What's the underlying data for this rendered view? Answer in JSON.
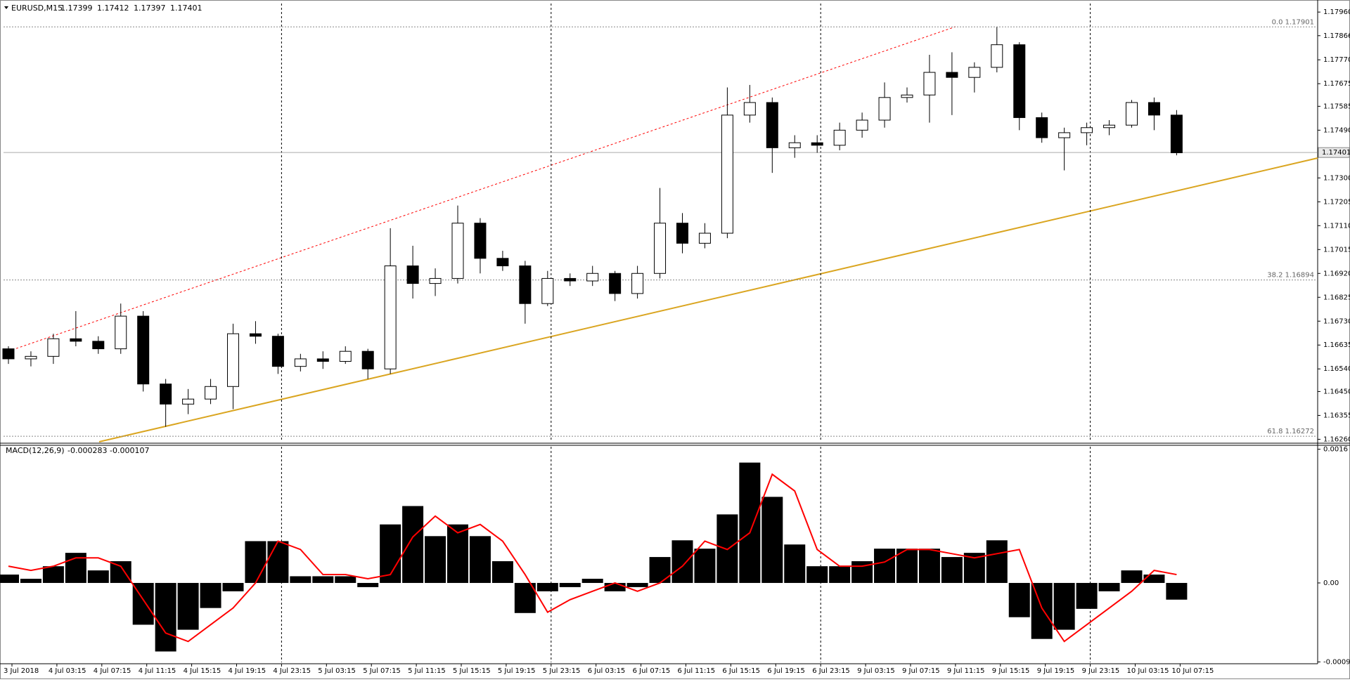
{
  "chart_data": [
    {
      "type": "candlestick",
      "symbol": "EURUSD,M15",
      "ohlc": [
        1.17399,
        1.17412,
        1.17397,
        1.17401
      ],
      "categories": [
        "3 Jul 2018",
        null,
        "4 Jul 03:15",
        null,
        "4 Jul 07:15",
        null,
        "4 Jul 11:15",
        null,
        "4 Jul 15:15",
        null,
        "4 Jul 19:15",
        null,
        "4 Jul 23:15",
        null,
        "5 Jul 03:15",
        null,
        "5 Jul 07:15",
        null,
        "5 Jul 11:15",
        null,
        "5 Jul 15:15",
        null,
        "5 Jul 19:15",
        null,
        "5 Jul 23:15",
        null,
        "6 Jul 03:15",
        null,
        "6 Jul 07:15",
        null,
        "6 Jul 11:15",
        null,
        "6 Jul 15:15",
        null,
        "6 Jul 19:15",
        null,
        "6 Jul 23:15",
        null,
        "9 Jul 03:15",
        null,
        "9 Jul 07:15",
        null,
        "9 Jul 11:15",
        null,
        "9 Jul 15:15",
        null,
        "9 Jul 19:15",
        null,
        "9 Jul 23:15",
        null,
        "10 Jul 03:15",
        null,
        "10 Jul 07:15"
      ],
      "open": [
        1.1662,
        1.1658,
        1.1659,
        1.1666,
        1.1665,
        1.1662,
        1.1675,
        1.1648,
        1.164,
        1.1642,
        1.1647,
        1.1668,
        1.1667,
        1.1655,
        1.1658,
        1.1657,
        1.1661,
        1.1654,
        1.1695,
        1.1688,
        1.169,
        1.1712,
        1.1698,
        1.1695,
        1.168,
        1.169,
        1.1689,
        1.1692,
        1.1684,
        1.1692,
        1.1712,
        1.1704,
        1.1708,
        1.1755,
        1.176,
        1.1742,
        1.1744,
        1.1743,
        1.1749,
        1.1753,
        1.1762,
        1.1763,
        1.1772,
        1.177,
        1.1774,
        1.1783,
        1.1754,
        1.1746,
        1.1748,
        1.175,
        1.1751,
        1.176,
        1.1755
      ],
      "high": [
        1.1663,
        1.1661,
        1.1668,
        1.1677,
        1.1667,
        1.168,
        1.1677,
        1.165,
        1.1646,
        1.165,
        1.1672,
        1.1673,
        1.1668,
        1.166,
        1.1661,
        1.1663,
        1.1662,
        1.171,
        1.1703,
        1.1694,
        1.1719,
        1.1714,
        1.1701,
        1.1697,
        1.1693,
        1.1692,
        1.1695,
        1.1693,
        1.1695,
        1.1726,
        1.1716,
        1.1712,
        1.1766,
        1.1767,
        1.1762,
        1.1747,
        1.1747,
        1.1752,
        1.1756,
        1.1768,
        1.1766,
        1.1779,
        1.178,
        1.1776,
        1.179,
        1.1784,
        1.1756,
        1.175,
        1.1752,
        1.1753,
        1.1761,
        1.1762,
        1.1757
      ],
      "low": [
        1.1656,
        1.1655,
        1.1656,
        1.1663,
        1.166,
        1.166,
        1.1645,
        1.1631,
        1.1636,
        1.164,
        1.1638,
        1.1664,
        1.1652,
        1.1653,
        1.1654,
        1.1656,
        1.165,
        1.1652,
        1.1682,
        1.1683,
        1.1688,
        1.1692,
        1.1693,
        1.1672,
        1.1679,
        1.1687,
        1.1687,
        1.1681,
        1.1682,
        1.169,
        1.17,
        1.1702,
        1.1706,
        1.1752,
        1.1732,
        1.1738,
        1.174,
        1.1741,
        1.1746,
        1.175,
        1.176,
        1.1752,
        1.1755,
        1.1764,
        1.1772,
        1.1749,
        1.1744,
        1.1733,
        1.1743,
        1.1747,
        1.175,
        1.1749,
        1.1739
      ],
      "close": [
        1.1658,
        1.1659,
        1.1666,
        1.1665,
        1.1662,
        1.1675,
        1.1648,
        1.164,
        1.1642,
        1.1647,
        1.1668,
        1.1667,
        1.1655,
        1.1658,
        1.1657,
        1.1661,
        1.1654,
        1.1695,
        1.1688,
        1.169,
        1.1712,
        1.1698,
        1.1695,
        1.168,
        1.169,
        1.1689,
        1.1692,
        1.1684,
        1.1692,
        1.1712,
        1.1704,
        1.1708,
        1.1755,
        1.176,
        1.1742,
        1.1744,
        1.1743,
        1.1749,
        1.1753,
        1.1762,
        1.1763,
        1.1772,
        1.177,
        1.1774,
        1.1783,
        1.1754,
        1.1746,
        1.1748,
        1.175,
        1.1751,
        1.176,
        1.1755,
        1.174
      ],
      "ylim": [
        1.1625,
        1.17994
      ],
      "yticks": [
        {
          "value": 1.1796,
          "label": "1.17960"
        },
        1.17866,
        {
          "value": 1.1777,
          "label": "1.17770"
        },
        1.17675,
        1.17585,
        {
          "value": 1.1749,
          "label": "1.17490"
        },
        {
          "value": 1.173,
          "label": "1.17300"
        },
        1.17205,
        {
          "value": 1.1711,
          "label": "1.17110"
        },
        1.17015,
        {
          "value": 1.1692,
          "label": "1.16920"
        },
        1.16825,
        {
          "value": 1.1673,
          "label": "1.16730"
        },
        1.16635,
        {
          "value": 1.1654,
          "label": "1.16540"
        },
        {
          "value": 1.1645,
          "label": "1.16450"
        },
        1.16355,
        {
          "value": 1.1626,
          "label": "1.16260"
        }
      ],
      "levels": [
        {
          "label": "0.0 1.17901",
          "value": 1.17901
        },
        {
          "label": "38.2 1.16894",
          "value": 1.16894
        },
        {
          "label": "61.8 1.16272",
          "value": 1.16272
        }
      ],
      "last_price": 1.17401,
      "grid": true
    },
    {
      "type": "macd",
      "title": "MACD(12,26,9)",
      "readout": [
        -0.000283,
        -0.000107
      ],
      "histogram": [
        0.0001,
        5e-05,
        0.0002,
        0.00036,
        0.00015,
        0.00026,
        -0.0005,
        -0.00082,
        -0.00056,
        -0.0003,
        -0.0001,
        0.0005,
        0.0005,
        8e-05,
        8e-05,
        8e-05,
        -5e-05,
        0.0007,
        0.00092,
        0.00056,
        0.0007,
        0.00056,
        0.00026,
        -0.00036,
        -0.0001,
        -5e-05,
        5e-05,
        -0.0001,
        -5e-05,
        0.00031,
        0.00051,
        0.00041,
        0.00082,
        0.00144,
        0.00103,
        0.00046,
        0.0002,
        0.0002,
        0.00026,
        0.00041,
        0.00041,
        0.00041,
        0.00031,
        0.00036,
        0.00051,
        -0.00041,
        -0.00067,
        -0.00056,
        -0.00031,
        -0.0001,
        0.00015,
        0.0001,
        -0.0002
      ],
      "signal": [
        0.0002,
        0.00015,
        0.0002,
        0.0003,
        0.0003,
        0.0002,
        -0.0002,
        -0.0006,
        -0.0007,
        -0.0005,
        -0.0003,
        0.0,
        0.0005,
        0.0004,
        0.0001,
        0.0001,
        5e-05,
        0.0001,
        0.00055,
        0.0008,
        0.0006,
        0.0007,
        0.0005,
        0.0001,
        -0.00035,
        -0.0002,
        -0.0001,
        0.0,
        -0.0001,
        0.0,
        0.0002,
        0.0005,
        0.0004,
        0.0006,
        0.0013,
        0.0011,
        0.0004,
        0.0002,
        0.0002,
        0.00025,
        0.0004,
        0.0004,
        0.00035,
        0.0003,
        0.00035,
        0.0004,
        -0.0003,
        -0.0007,
        -0.0005,
        -0.0003,
        -0.0001,
        0.00015,
        0.0001
      ],
      "histogram_color": "#000000",
      "signal_color": "#ff0000",
      "ylim": [
        -0.00095,
        0.00163
      ],
      "yticks": [
        0.0016,
        {
          "value": 0,
          "label": "0.00"
        },
        -0.000945
      ]
    }
  ]
}
